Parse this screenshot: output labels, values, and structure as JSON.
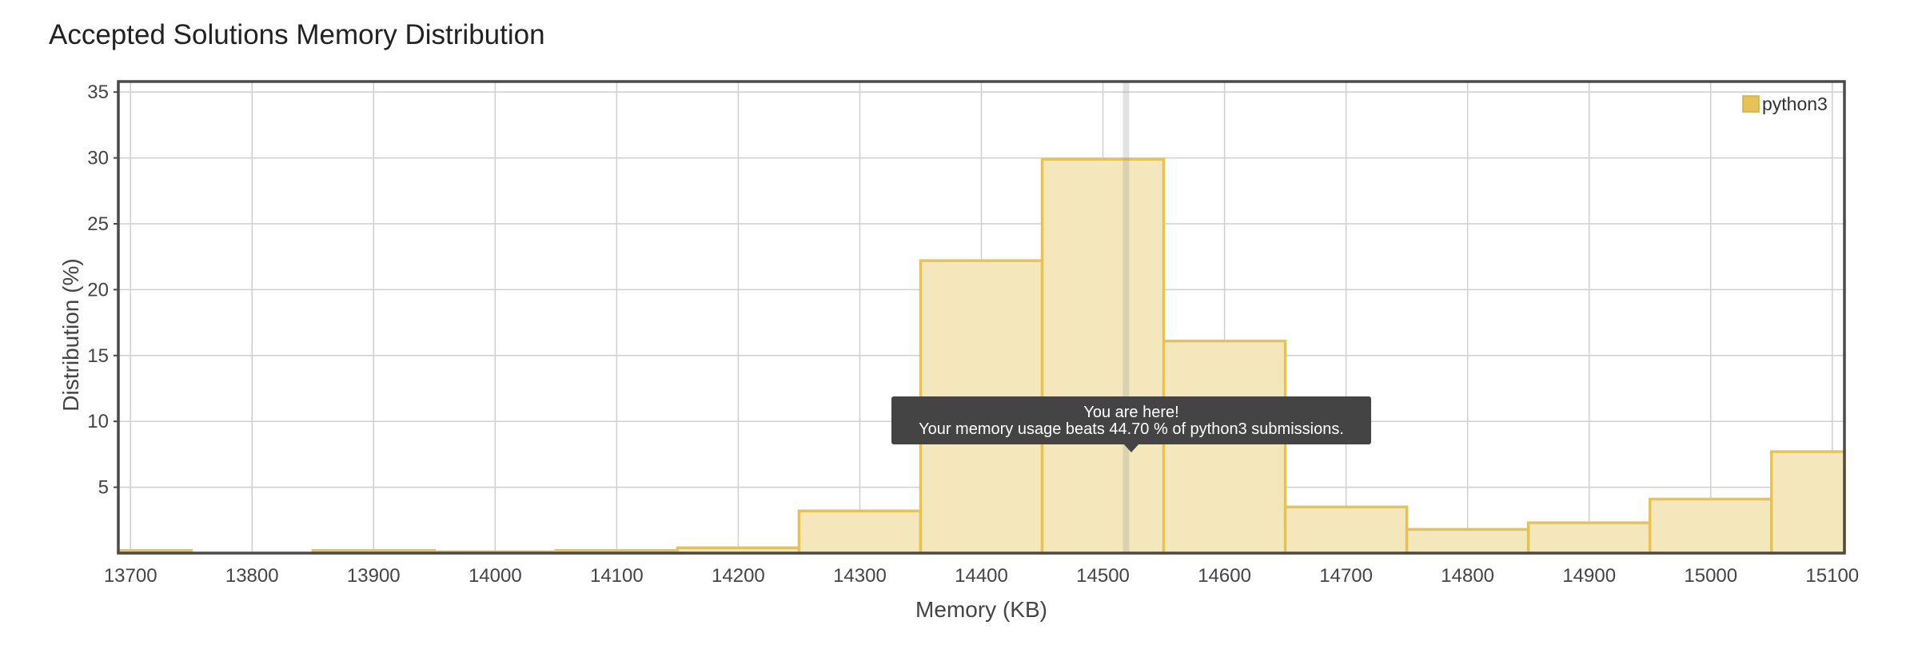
{
  "title": "Accepted Solutions Memory Distribution",
  "chart_data": {
    "type": "bar",
    "xlabel": "Memory (KB)",
    "ylabel": "Distribution (%)",
    "xlim": [
      13690,
      15110
    ],
    "ylim": [
      0,
      35.8
    ],
    "x_ticks": [
      13700,
      13800,
      13900,
      14000,
      14100,
      14200,
      14300,
      14400,
      14500,
      14600,
      14700,
      14800,
      14900,
      15000,
      15100
    ],
    "y_ticks": [
      5,
      10,
      15,
      20,
      25,
      30,
      35
    ],
    "grid": true,
    "legend": {
      "position": "top-right"
    },
    "series": [
      {
        "name": "python3",
        "color": "#e6c25a",
        "fill": "#f3e7bb",
        "bin_width": 100,
        "bins": [
          {
            "x": 13700,
            "y": 0.2
          },
          {
            "x": 13800,
            "y": 0.0
          },
          {
            "x": 13900,
            "y": 0.2
          },
          {
            "x": 14000,
            "y": 0.1
          },
          {
            "x": 14100,
            "y": 0.2
          },
          {
            "x": 14200,
            "y": 0.4
          },
          {
            "x": 14300,
            "y": 3.2
          },
          {
            "x": 14400,
            "y": 22.2
          },
          {
            "x": 14500,
            "y": 29.9
          },
          {
            "x": 14600,
            "y": 16.1
          },
          {
            "x": 14700,
            "y": 3.5
          },
          {
            "x": 14800,
            "y": 1.8
          },
          {
            "x": 14900,
            "y": 2.3
          },
          {
            "x": 15000,
            "y": 4.1
          },
          {
            "x": 15100,
            "y": 7.7
          }
        ]
      }
    ],
    "marker": {
      "x": 14519
    },
    "tooltip": {
      "line1": "You are here!",
      "line2": "Your memory usage beats 44.70 % of python3 submissions."
    }
  }
}
